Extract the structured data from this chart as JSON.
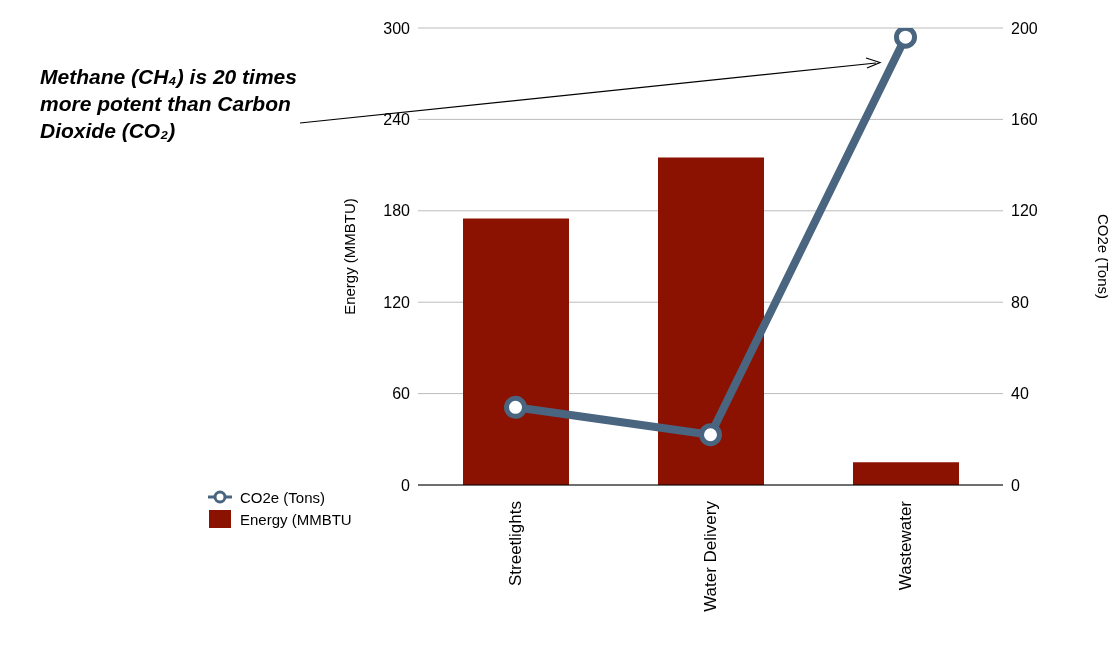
{
  "chart_data": {
    "type": "bar",
    "categories": [
      "Streetlights",
      "Water Delivery",
      "Wastewater"
    ],
    "series": [
      {
        "name": "CO2e (Tons)",
        "type": "line",
        "axis": "y2",
        "color": "#4a6580",
        "values": [
          34,
          22,
          196
        ]
      },
      {
        "name": "Energy (MMBTU",
        "color": "#8b1200",
        "values": [
          175,
          215,
          15
        ]
      }
    ],
    "ylabel": "Energy (MMBTU)",
    "y2label": "CO2e (Tons)",
    "ylim": [
      0,
      300
    ],
    "yticks": [
      0,
      60,
      120,
      180,
      240,
      300
    ],
    "y2lim": [
      0,
      200
    ],
    "y2ticks": [
      0,
      40,
      80,
      120,
      160,
      200
    ],
    "grid": "y",
    "legend": "bottom left",
    "marker": "circle",
    "line_style": "solid",
    "annotations": [
      "Methane (CH₄) is 20 times more potent than Carbon Dioxide (CO₂)"
    ]
  }
}
